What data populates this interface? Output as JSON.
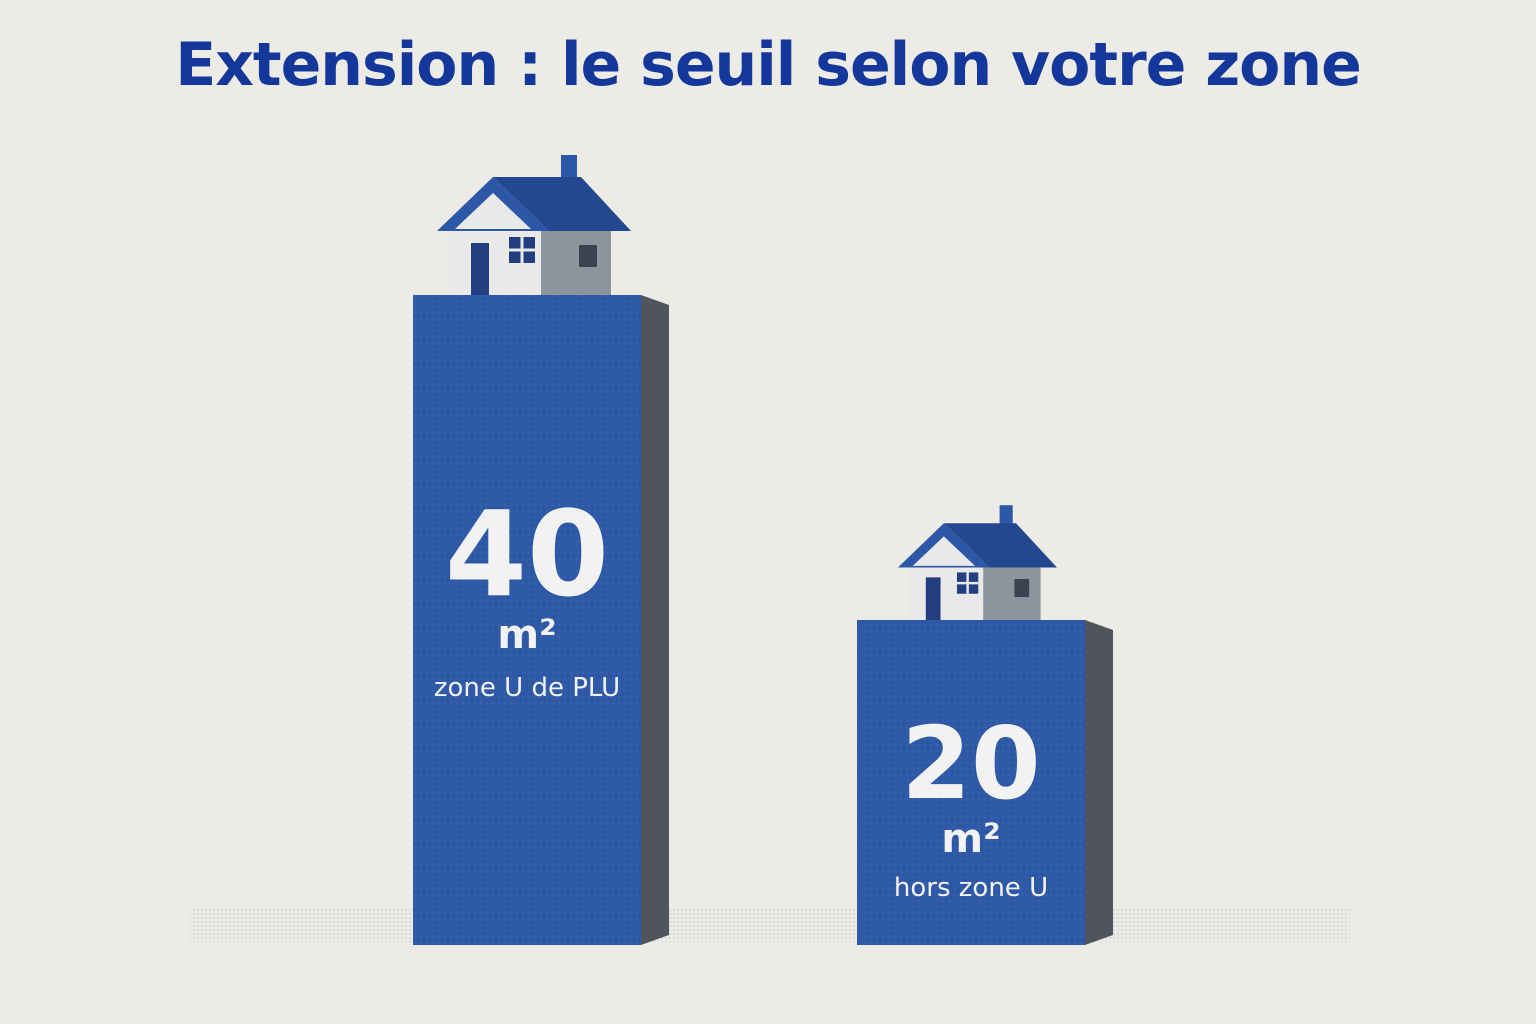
{
  "page": {
    "title": "Extension : le seuil selon votre zone"
  },
  "colors": {
    "background": "#ecebe6",
    "title": "#13379a",
    "bar_front": "#2e59a6",
    "bar_side": "#50545c",
    "roof": "#2d58a8",
    "house_wall": "#e9e9ea",
    "label_text": "#f2f2f2"
  },
  "icons": [
    "house-icon"
  ],
  "chart_data": {
    "type": "bar",
    "title": "Extension : le seuil selon votre zone",
    "categories": [
      "zone U de PLU",
      "hors zone U"
    ],
    "values": [
      40,
      20
    ],
    "unit": "m²",
    "value_labels": [
      "40",
      "20"
    ],
    "unit_labels": [
      "m²",
      "m²"
    ],
    "ylim": [
      0,
      40
    ],
    "grid": false,
    "legend": "none",
    "bar_icon": "house-icon"
  }
}
